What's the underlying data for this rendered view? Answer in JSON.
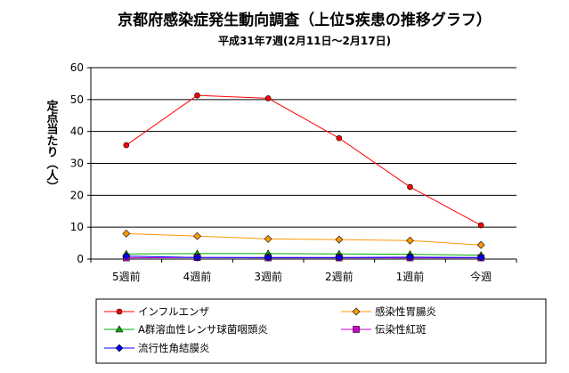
{
  "chart_data": {
    "type": "line",
    "title": "京都府感染症発生動向調査（上位5疾患の推移グラフ）",
    "subtitle": "平成31年7週(2月11日～2月17日)",
    "xlabel": "",
    "ylabel": "定点当たり（人）",
    "categories": [
      "5週前",
      "4週前",
      "3週前",
      "2週前",
      "1週前",
      "今週"
    ],
    "ylim": [
      0,
      60
    ],
    "yticks": [
      0,
      10,
      20,
      30,
      40,
      50,
      60
    ],
    "grid": true,
    "legend_position": "bottom",
    "series": [
      {
        "name": "インフルエンザ",
        "color": "#ff0000",
        "marker": "circle",
        "values": [
          35.7,
          51.3,
          50.4,
          37.9,
          22.6,
          10.6
        ]
      },
      {
        "name": "感染性胃腸炎",
        "color": "#ff9900",
        "marker": "diamond",
        "values": [
          8.0,
          7.2,
          6.3,
          6.1,
          5.8,
          4.4
        ]
      },
      {
        "name": "A群溶血性レンサ球菌咽頭炎",
        "color": "#00aa00",
        "marker": "triangle",
        "values": [
          1.6,
          1.7,
          1.7,
          1.6,
          1.5,
          1.2
        ]
      },
      {
        "name": "伝染性紅斑",
        "color": "#cc00cc",
        "marker": "square",
        "values": [
          0.4,
          0.5,
          0.4,
          0.4,
          0.4,
          0.4
        ]
      },
      {
        "name": "流行性角結膜炎",
        "color": "#0000ff",
        "marker": "diamond",
        "values": [
          0.9,
          0.5,
          0.5,
          0.5,
          0.6,
          0.5
        ]
      }
    ]
  }
}
